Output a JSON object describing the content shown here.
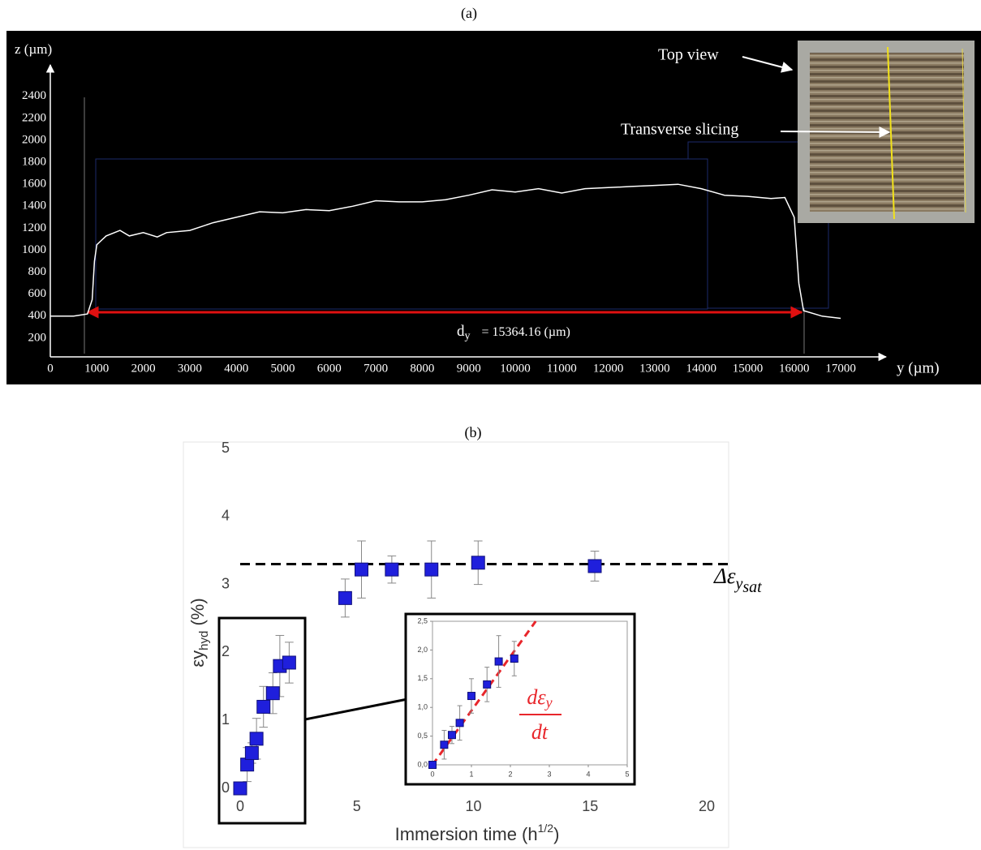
{
  "chart_data": [
    {
      "type": "line",
      "title": "(a)",
      "x_label": "y (µm)",
      "y_label": "z (µm)",
      "x": [
        0,
        500,
        800,
        900,
        950,
        1000,
        1200,
        1500,
        1700,
        2000,
        2300,
        2500,
        3000,
        3500,
        4000,
        4500,
        5000,
        5500,
        6000,
        6500,
        7000,
        7500,
        8000,
        8500,
        9000,
        9500,
        10000,
        10500,
        11000,
        11500,
        12000,
        12500,
        13000,
        13500,
        14000,
        14500,
        15000,
        15500,
        15800,
        16000,
        16100,
        16200,
        16600,
        17000
      ],
      "values": [
        400,
        400,
        420,
        550,
        900,
        1050,
        1130,
        1180,
        1130,
        1160,
        1120,
        1160,
        1180,
        1250,
        1300,
        1350,
        1340,
        1370,
        1360,
        1400,
        1450,
        1440,
        1440,
        1460,
        1500,
        1550,
        1530,
        1560,
        1520,
        1560,
        1570,
        1580,
        1590,
        1600,
        1560,
        1500,
        1490,
        1470,
        1480,
        1300,
        700,
        450,
        400,
        380
      ],
      "color": "#ffffff",
      "xlim": [
        0,
        18000
      ],
      "xticks": [
        0,
        1000,
        2000,
        3000,
        4000,
        5000,
        6000,
        7000,
        8000,
        9000,
        10000,
        11000,
        12000,
        13000,
        14000,
        15000,
        16000,
        17000
      ],
      "ylim": [
        0,
        2700
      ],
      "yticks": [
        200,
        400,
        600,
        800,
        1000,
        1200,
        1400,
        1600,
        1800,
        2000,
        2200,
        2400
      ],
      "measure": {
        "symbol": "d",
        "subscript": "y",
        "text": "= 15364.16 (µm)"
      },
      "annotations": [
        "Top view",
        "Transverse slicing"
      ]
    },
    {
      "type": "scatter",
      "title": "(b)",
      "x_label": {
        "text": "Immersion time (h",
        "sup": "1/2",
        "end": ")"
      },
      "y_label": {
        "text": "εy",
        "sub": "hyd",
        "unit": " (%)"
      },
      "x": [
        0,
        0.3,
        0.5,
        0.7,
        1,
        1.4,
        1.7,
        2.1,
        4.5,
        5.2,
        6.5,
        8.2,
        10.2,
        15.2
      ],
      "values": [
        0,
        0.35,
        0.52,
        0.73,
        1.2,
        1.4,
        1.8,
        1.85,
        2.8,
        3.22,
        3.22,
        3.22,
        3.32,
        3.27
      ],
      "errors": [
        0.05,
        0.25,
        0.15,
        0.3,
        0.3,
        0.3,
        0.45,
        0.3,
        0.28,
        0.42,
        0.2,
        0.42,
        0.32,
        0.22
      ],
      "color": "#1f1fdc",
      "xlim": [
        0,
        21
      ],
      "xticks": [
        0,
        5,
        10,
        15,
        20
      ],
      "ylim": [
        0,
        5
      ],
      "yticks": [
        0,
        1,
        2,
        3,
        4,
        5
      ],
      "saturation": {
        "value": 3.3,
        "label": "Δε",
        "sub": "y",
        "subsub": "sat"
      }
    },
    {
      "type": "scatter",
      "x": [
        0,
        0.3,
        0.5,
        0.7,
        1,
        1.4,
        1.7,
        2.1
      ],
      "values": [
        0,
        0.35,
        0.52,
        0.73,
        1.2,
        1.4,
        1.8,
        1.85
      ],
      "errors": [
        0.05,
        0.25,
        0.15,
        0.3,
        0.3,
        0.3,
        0.45,
        0.3
      ],
      "color": "#1f1fdc",
      "xlim": [
        0,
        5
      ],
      "xticks": [
        0,
        1,
        2,
        3,
        4,
        5
      ],
      "ylim": [
        0,
        2.5
      ],
      "yticks": [
        {
          "value": 0,
          "label": "0,0"
        },
        {
          "value": 0.5,
          "label": "0,5"
        },
        {
          "value": 1,
          "label": "1,0"
        },
        {
          "value": 1.5,
          "label": "1,5"
        },
        {
          "value": 2,
          "label": "2,0"
        },
        {
          "value": 2.5,
          "label": "2,5"
        }
      ],
      "trend": {
        "x": [
          0,
          2.65
        ],
        "values": [
          0,
          2.5
        ],
        "color": "#e8262b"
      },
      "trend_label": {
        "num": "dε",
        "sub": "y",
        "den": "dt"
      }
    }
  ]
}
